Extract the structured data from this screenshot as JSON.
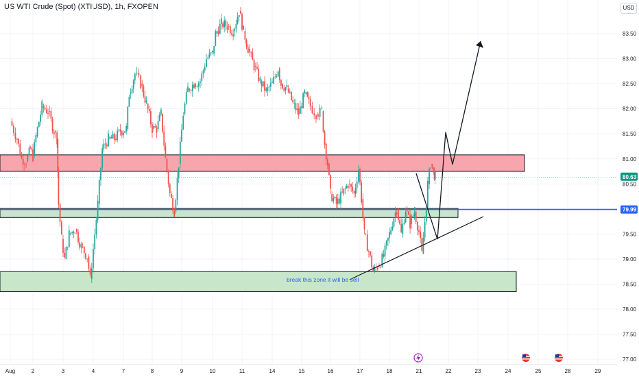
{
  "symbol_title": "US WTI Crude (Spot) (XTIUSD), 1h, FXOPEN",
  "currency": "USD",
  "chart_data": {
    "type": "candlestick",
    "y_ticks": [
      "83.50",
      "83.00",
      "82.50",
      "82.00",
      "81.50",
      "81.00",
      "80.50",
      "80.00",
      "79.50",
      "79.00",
      "78.50",
      "78.00",
      "77.50",
      "77.00"
    ],
    "y_range": [
      76.85,
      84.2
    ],
    "x_ticks": [
      "Aug",
      "2",
      "3",
      "4",
      "7",
      "8",
      "9",
      "10",
      "11",
      "14",
      "15",
      "16",
      "17",
      "18",
      "21",
      "22",
      "23",
      "24",
      "25",
      "28",
      "29"
    ],
    "last_price": "80.63",
    "horizontal_line_price": "79.99",
    "colors": {
      "up": "#26a69a",
      "down": "#ef5350",
      "hline": "#2962ff",
      "resistance_zone": "#f7a6ad",
      "support_zone": "#c8e6c9"
    },
    "resistance_zone": [
      80.75,
      81.08
    ],
    "support_zone_mid": [
      79.83,
      80.01
    ],
    "support_zone_low": [
      78.35,
      78.75
    ],
    "approx_closes": [
      [
        0,
        81.75
      ],
      [
        0.3,
        81.4
      ],
      [
        0.5,
        81.0
      ],
      [
        0.7,
        80.95
      ],
      [
        0.9,
        81.2
      ],
      [
        1.0,
        81.05
      ],
      [
        1.1,
        81.45
      ],
      [
        1.3,
        82.05
      ],
      [
        1.5,
        81.95
      ],
      [
        1.7,
        81.55
      ],
      [
        1.8,
        81.4
      ],
      [
        1.85,
        80.1
      ],
      [
        1.95,
        79.4
      ],
      [
        2.05,
        79.0
      ],
      [
        2.2,
        79.5
      ],
      [
        2.4,
        79.6
      ],
      [
        2.6,
        79.25
      ],
      [
        2.8,
        79.05
      ],
      [
        2.9,
        78.6
      ],
      [
        3.0,
        79.2
      ],
      [
        3.15,
        80.1
      ],
      [
        3.3,
        81.2
      ],
      [
        3.5,
        81.4
      ],
      [
        3.7,
        81.4
      ],
      [
        3.9,
        81.55
      ],
      [
        4.1,
        81.6
      ],
      [
        4.2,
        82.3
      ],
      [
        4.4,
        82.7
      ],
      [
        4.6,
        82.5
      ],
      [
        4.8,
        82.1
      ],
      [
        5.0,
        81.6
      ],
      [
        5.15,
        81.6
      ],
      [
        5.3,
        81.9
      ],
      [
        5.45,
        81.0
      ],
      [
        5.6,
        80.3
      ],
      [
        5.75,
        79.95
      ],
      [
        5.9,
        80.9
      ],
      [
        6.05,
        81.9
      ],
      [
        6.2,
        82.4
      ],
      [
        6.4,
        82.5
      ],
      [
        6.6,
        82.55
      ],
      [
        6.8,
        83.0
      ],
      [
        7.0,
        83.1
      ],
      [
        7.1,
        83.5
      ],
      [
        7.3,
        83.7
      ],
      [
        7.5,
        83.65
      ],
      [
        7.7,
        83.55
      ],
      [
        7.9,
        83.95
      ],
      [
        8.05,
        83.55
      ],
      [
        8.2,
        83.2
      ],
      [
        8.4,
        82.85
      ],
      [
        8.6,
        82.55
      ],
      [
        8.8,
        82.35
      ],
      [
        9.0,
        82.5
      ],
      [
        9.2,
        82.8
      ],
      [
        9.3,
        82.5
      ],
      [
        9.5,
        82.4
      ],
      [
        9.7,
        82.1
      ],
      [
        9.9,
        81.9
      ],
      [
        10.1,
        82.3
      ],
      [
        10.3,
        82.05
      ],
      [
        10.5,
        81.9
      ],
      [
        10.7,
        81.95
      ],
      [
        10.8,
        81.3
      ],
      [
        10.9,
        80.9
      ],
      [
        11.0,
        80.3
      ],
      [
        11.2,
        80.1
      ],
      [
        11.4,
        80.3
      ],
      [
        11.6,
        80.5
      ],
      [
        11.8,
        80.3
      ],
      [
        11.95,
        80.8
      ],
      [
        12.05,
        80.2
      ],
      [
        12.15,
        79.5
      ],
      [
        12.3,
        79.15
      ],
      [
        12.45,
        78.75
      ],
      [
        12.6,
        78.85
      ],
      [
        12.8,
        79.05
      ],
      [
        13.0,
        79.5
      ],
      [
        13.15,
        79.85
      ],
      [
        13.25,
        80.0
      ],
      [
        13.4,
        79.5
      ],
      [
        13.55,
        80.0
      ],
      [
        13.7,
        79.7
      ],
      [
        13.85,
        79.95
      ],
      [
        14.0,
        79.55
      ],
      [
        14.1,
        79.1
      ],
      [
        14.2,
        79.75
      ],
      [
        14.3,
        80.5
      ],
      [
        14.4,
        80.9
      ],
      [
        14.5,
        80.75
      ],
      [
        14.55,
        80.63
      ]
    ]
  },
  "annotations": {
    "note_text": "break this zone it will be sell"
  }
}
